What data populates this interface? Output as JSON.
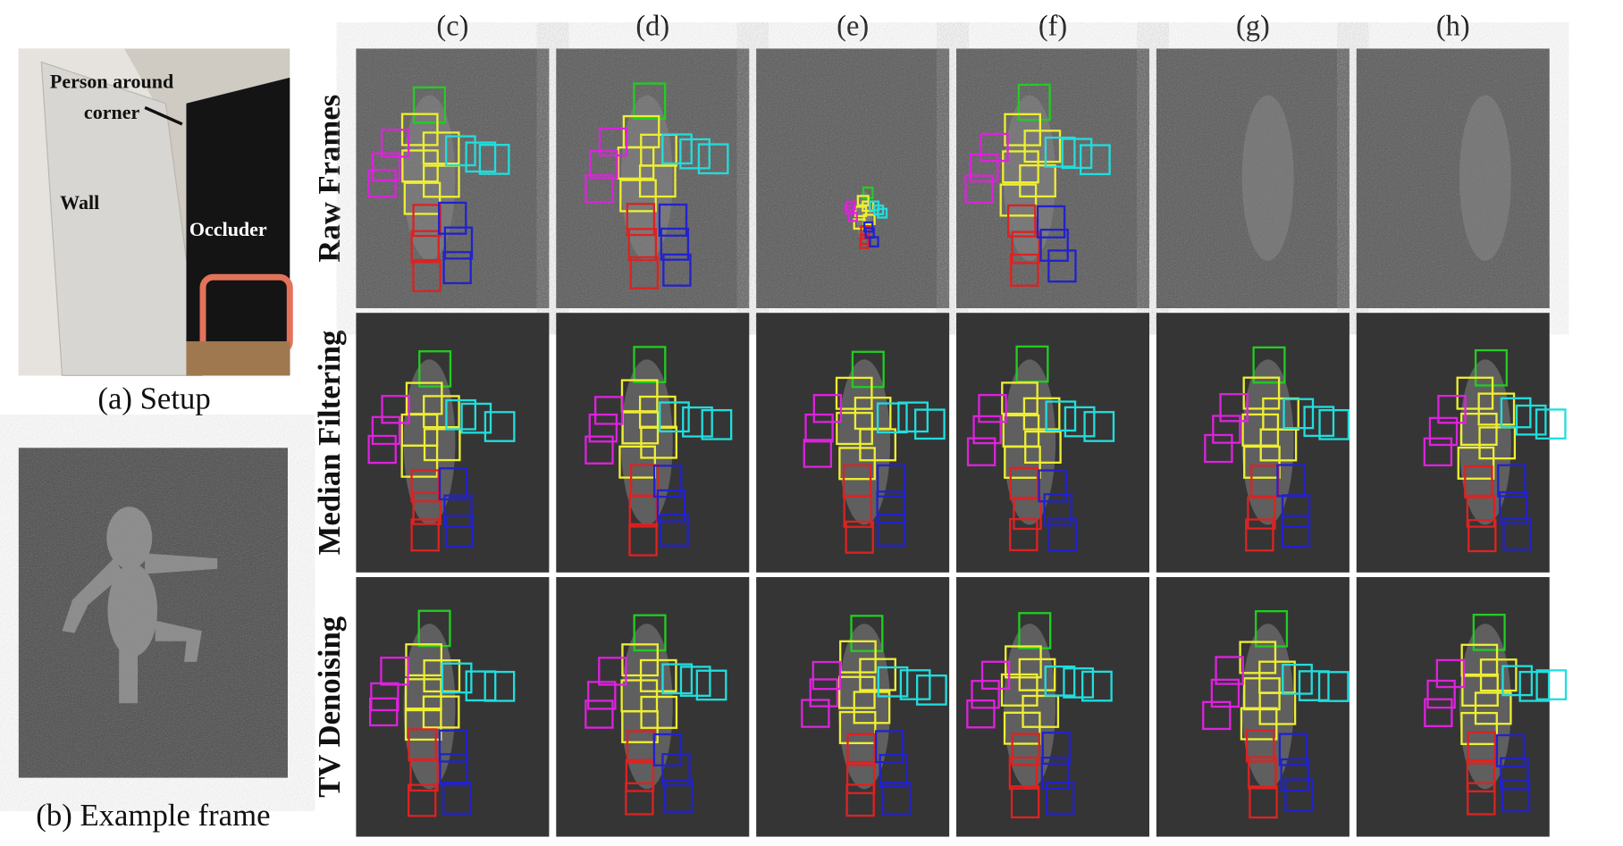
{
  "setup": {
    "person_label_lines": [
      "Person around",
      "corner"
    ],
    "wall_label": "Wall",
    "occluder_label": "Occluder",
    "caption": "(a) Setup"
  },
  "example": {
    "caption": "(b) Example frame"
  },
  "grid": {
    "columns": [
      "(c)",
      "(d)",
      "(e)",
      "(f)",
      "(g)",
      "(h)"
    ],
    "rows": [
      "Raw Frames",
      "Median Filtering",
      "TV Denoising"
    ]
  }
}
